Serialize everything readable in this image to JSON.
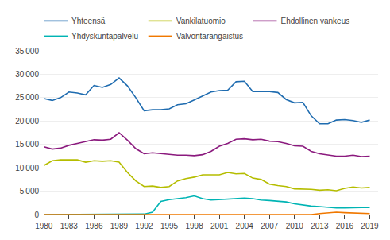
{
  "chart_data": {
    "type": "line",
    "x": [
      1980,
      1981,
      1982,
      1983,
      1984,
      1985,
      1986,
      1987,
      1988,
      1989,
      1990,
      1991,
      1992,
      1993,
      1994,
      1995,
      1996,
      1997,
      1998,
      1999,
      2000,
      2001,
      2002,
      2003,
      2004,
      2005,
      2006,
      2007,
      2008,
      2009,
      2010,
      2011,
      2012,
      2013,
      2014,
      2015,
      2016,
      2017,
      2018,
      2019
    ],
    "series": [
      {
        "name": "Yhteensä",
        "color": "#1f6cb0",
        "values": [
          24800,
          24400,
          25000,
          26200,
          26000,
          25600,
          27600,
          27200,
          27800,
          29200,
          27500,
          25000,
          22200,
          22400,
          22400,
          22600,
          23500,
          23700,
          24500,
          25400,
          26200,
          26500,
          26600,
          28400,
          28500,
          26300,
          26300,
          26300,
          26100,
          24600,
          23900,
          24000,
          21100,
          19400,
          19400,
          20200,
          20300,
          20100,
          19700,
          20200
        ]
      },
      {
        "name": "Vankilatuomio",
        "color": "#b5bd00",
        "values": [
          10500,
          11500,
          11700,
          11700,
          11700,
          11200,
          11500,
          11400,
          11500,
          11200,
          9000,
          7200,
          6000,
          6100,
          5800,
          6000,
          7200,
          7700,
          8000,
          8500,
          8500,
          8500,
          9000,
          8700,
          8800,
          7800,
          7500,
          6500,
          6200,
          6000,
          5500,
          5500,
          5400,
          5200,
          5300,
          5100,
          5600,
          5900,
          5700,
          5800
        ]
      },
      {
        "name": "Ehdollinen vankeus",
        "color": "#8b1a7e",
        "values": [
          14500,
          14000,
          14200,
          14800,
          15200,
          15600,
          16000,
          15900,
          16100,
          17500,
          15900,
          14100,
          13000,
          13200,
          13000,
          12800,
          12700,
          12700,
          12600,
          12800,
          13500,
          14600,
          15200,
          16100,
          16200,
          16000,
          16100,
          15700,
          15600,
          15200,
          14700,
          14600,
          13500,
          13000,
          12700,
          12500,
          12500,
          12700,
          12400,
          12500
        ]
      },
      {
        "name": "Yhdyskuntapalvelu",
        "color": "#00b4b4",
        "values": [
          0,
          0,
          0,
          0,
          0,
          0,
          0,
          0,
          0,
          0,
          0,
          0,
          100,
          500,
          2800,
          3200,
          3400,
          3600,
          4000,
          3400,
          3100,
          3200,
          3300,
          3500,
          3500,
          3400,
          3100,
          3000,
          2800,
          2700,
          2300,
          2000,
          1800,
          1700,
          1500,
          1400,
          1400,
          1500,
          1500,
          1500
        ]
      },
      {
        "name": "Valvontarangaistus",
        "color": "#f07800",
        "values": [
          0,
          0,
          0,
          0,
          0,
          0,
          0,
          0,
          0,
          0,
          0,
          0,
          0,
          0,
          0,
          0,
          0,
          0,
          0,
          0,
          0,
          0,
          0,
          0,
          0,
          0,
          0,
          0,
          0,
          0,
          0,
          0,
          0,
          200,
          400,
          500,
          400,
          300,
          250,
          200
        ]
      }
    ],
    "xlim": [
      1979.5,
      2020.0
    ],
    "xticks": [
      1980,
      1983,
      1986,
      1989,
      1992,
      1995,
      1998,
      2001,
      2004,
      2007,
      2010,
      2013,
      2016,
      2019
    ],
    "ylim": [
      0,
      35000
    ],
    "yticks": [
      0,
      {
        "value": 5000,
        "label": "5 000"
      },
      {
        "value": 10000,
        "label": "10 000"
      },
      {
        "value": 15000,
        "label": "15 000"
      },
      {
        "value": 20000,
        "label": "20 000"
      },
      {
        "value": 25000,
        "label": "25 000"
      },
      {
        "value": 30000,
        "label": "30 000"
      },
      {
        "value": 35000,
        "label": "35 000"
      }
    ],
    "grid": true,
    "legend": "upper left"
  }
}
